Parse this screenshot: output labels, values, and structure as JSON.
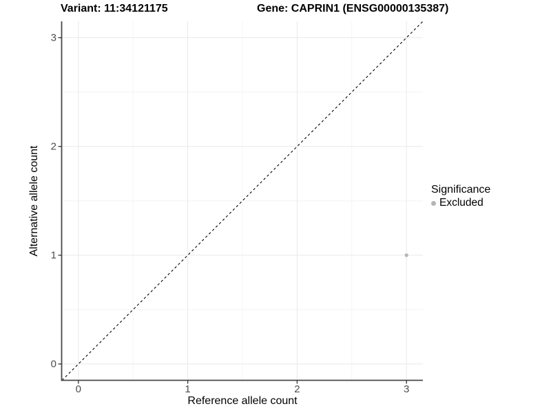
{
  "titles": {
    "variant": "Variant: 11:34121175",
    "gene": "Gene: CAPRIN1 (ENSG00000135387)"
  },
  "axes": {
    "x_label": "Reference allele count",
    "y_label": "Alternative allele count"
  },
  "legend": {
    "title": "Significance",
    "items": [
      {
        "label": "Excluded",
        "color": "#b5b5b5"
      }
    ]
  },
  "colors": {
    "background": "#ffffff",
    "point": "#b5b5b5",
    "grid_major": "#e9e9e9",
    "grid_minor": "#f4f4f4",
    "axis_line": "#474747",
    "tick_mark": "#333333",
    "tick_text": "#4d4d4d",
    "identity_line": "#000000"
  },
  "chart_data": {
    "type": "scatter",
    "title": "Variant: 11:34121175 — Gene: CAPRIN1 (ENSG00000135387)",
    "xlabel": "Reference allele count",
    "ylabel": "Alternative allele count",
    "xlim": [
      -0.15,
      3.15
    ],
    "ylim": [
      -0.15,
      3.15
    ],
    "x_ticks": [
      0,
      1,
      2,
      3
    ],
    "y_ticks": [
      0,
      1,
      2,
      3
    ],
    "x_minor_ticks": [
      0.5,
      1.5,
      2.5
    ],
    "y_minor_ticks": [
      0.5,
      1.5,
      2.5
    ],
    "grid": true,
    "legend_position": "right",
    "series": [
      {
        "name": "Excluded",
        "color": "#b5b5b5",
        "points": [
          {
            "x": 3,
            "y": 1
          }
        ]
      }
    ],
    "reference_line": {
      "kind": "identity",
      "style": "dashed",
      "from": [
        -0.15,
        -0.15
      ],
      "to": [
        3.15,
        3.15
      ]
    }
  }
}
